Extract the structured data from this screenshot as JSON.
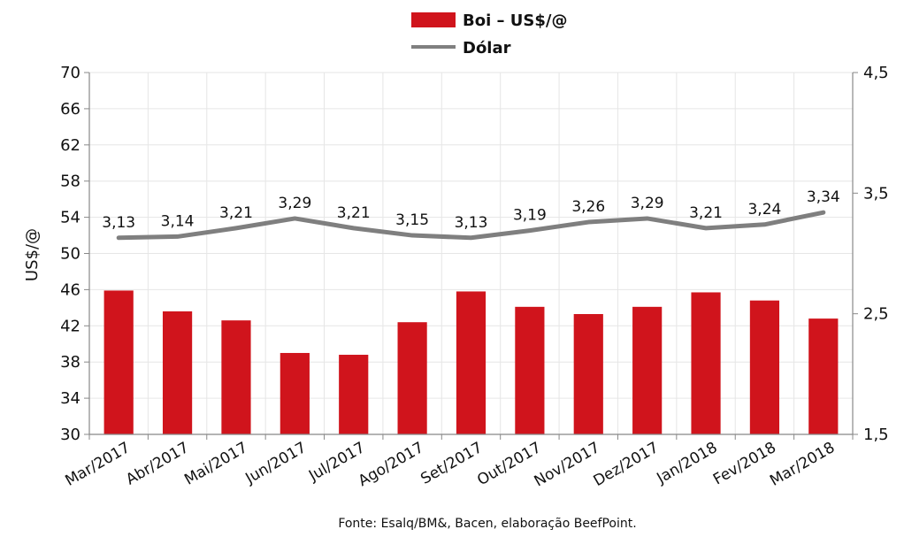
{
  "chart_data": {
    "type": "bar",
    "categories": [
      "Mar/2017",
      "Abr/2017",
      "Mai/2017",
      "Jun/2017",
      "Jul/2017",
      "Ago/2017",
      "Set/2017",
      "Out/2017",
      "Nov/2017",
      "Dez/2017",
      "Jan/2018",
      "Fev/2018",
      "Mar/2018"
    ],
    "series": [
      {
        "name": "Boi – US$/@",
        "type": "bar",
        "axis": "left",
        "color": "#d0141c",
        "values": [
          45.9,
          43.6,
          42.6,
          39.0,
          38.8,
          42.4,
          45.8,
          44.1,
          43.3,
          44.1,
          45.7,
          44.8,
          42.8
        ]
      },
      {
        "name": "Dólar",
        "type": "line",
        "axis": "right",
        "color": "#7f7f7f",
        "values": [
          3.13,
          3.14,
          3.21,
          3.29,
          3.21,
          3.15,
          3.13,
          3.19,
          3.26,
          3.29,
          3.21,
          3.24,
          3.34
        ],
        "labels": [
          "3,13",
          "3,14",
          "3,21",
          "3,29",
          "3,21",
          "3,15",
          "3,13",
          "3,19",
          "3,26",
          "3,29",
          "3,21",
          "3,24",
          "3,34"
        ]
      }
    ],
    "ylabel": "US$/@",
    "ylim": [
      30,
      70
    ],
    "yticks": [
      "30",
      "34",
      "38",
      "42",
      "46",
      "50",
      "54",
      "58",
      "62",
      "66",
      "70"
    ],
    "y2lim": [
      1.5,
      4.5
    ],
    "y2ticks": [
      "1,5",
      "2,5",
      "3,5",
      "4,5"
    ],
    "grid": true,
    "legend": "top-center",
    "source": "Fonte:  Esalq/BM&,  Bacen,  elaboração  BeefPoint."
  }
}
